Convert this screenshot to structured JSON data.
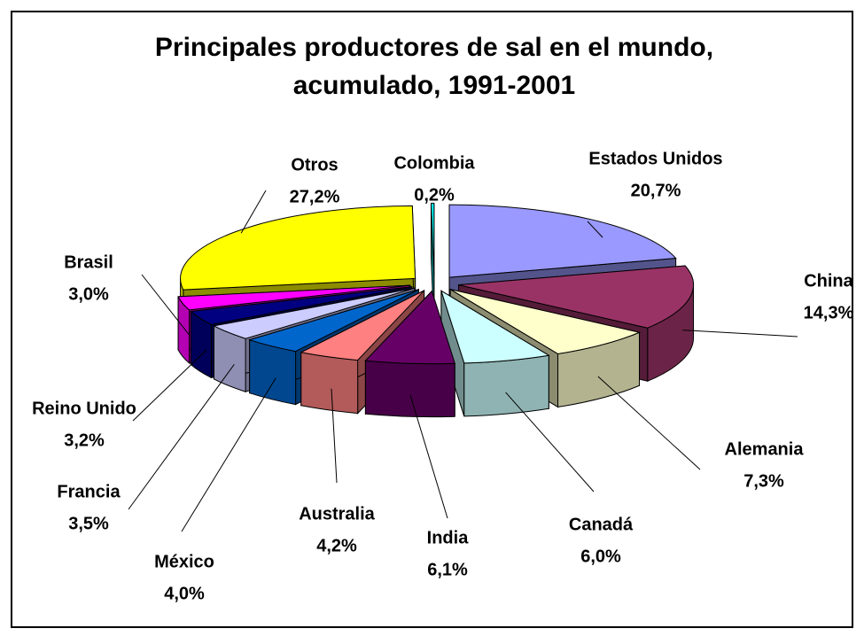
{
  "chart_data": {
    "type": "pie",
    "title": [
      "Principales productores de sal en el mundo,",
      "acumulado, 1991-2001"
    ],
    "categories": [
      "Estados Unidos",
      "China",
      "Alemania",
      "Canadá",
      "India",
      "Australia",
      "México",
      "Francia",
      "Reino Unido",
      "Brasil",
      "Otros",
      "Colombia"
    ],
    "values": [
      20.7,
      14.3,
      7.3,
      6.0,
      6.1,
      4.2,
      4.0,
      3.5,
      3.2,
      3.0,
      27.2,
      0.2
    ],
    "value_labels": [
      "20,7%",
      "14,3%",
      "7,3%",
      "6,0%",
      "6,1%",
      "4,2%",
      "4,0%",
      "3,5%",
      "3,2%",
      "3,0%",
      "27,2%",
      "0,2%"
    ],
    "colors": [
      "#9999ff",
      "#993366",
      "#ffffcc",
      "#ccffff",
      "#660066",
      "#ff8080",
      "#0066cc",
      "#ccccff",
      "#000080",
      "#ff00ff",
      "#ffff00",
      "#00ffff"
    ]
  }
}
